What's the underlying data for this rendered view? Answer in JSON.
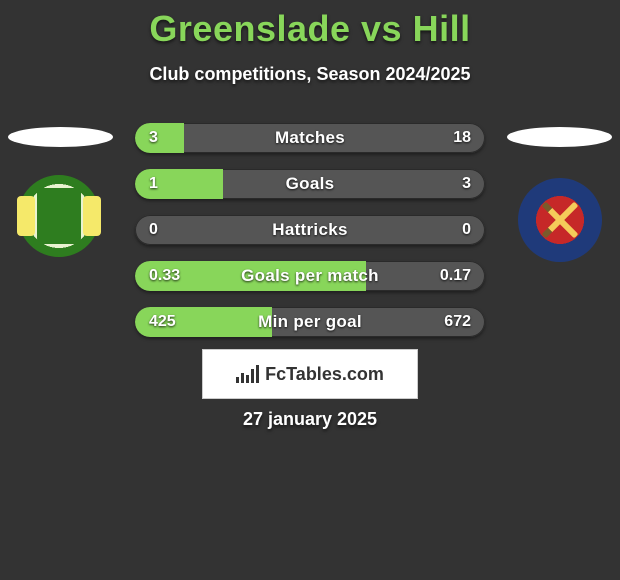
{
  "header": {
    "title": "Greenslade vs Hill",
    "subtitle": "Club competitions, Season 2024/2025",
    "title_color": "#88d65a",
    "text_color": "#ffffff"
  },
  "background_color": "#333333",
  "stats": {
    "bar_bg": "#555555",
    "bar_fill": "#88d65a",
    "rows": [
      {
        "label": "Matches",
        "left": "3",
        "right": "18",
        "fill_pct": 14
      },
      {
        "label": "Goals",
        "left": "1",
        "right": "3",
        "fill_pct": 25
      },
      {
        "label": "Hattricks",
        "left": "0",
        "right": "0",
        "fill_pct": 0
      },
      {
        "label": "Goals per match",
        "left": "0.33",
        "right": "0.17",
        "fill_pct": 66
      },
      {
        "label": "Min per goal",
        "left": "425",
        "right": "672",
        "fill_pct": 39
      }
    ]
  },
  "brand": {
    "text": "FcTables.com"
  },
  "date": "27 january 2025"
}
